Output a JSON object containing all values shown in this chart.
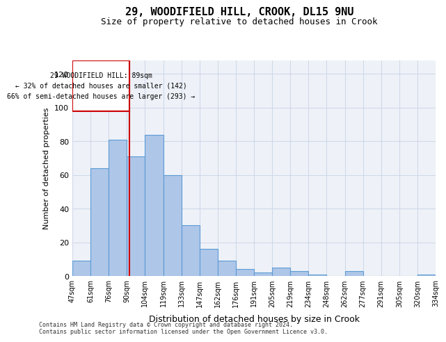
{
  "title1": "29, WOODIFIELD HILL, CROOK, DL15 9NU",
  "title2": "Size of property relative to detached houses in Crook",
  "xlabel": "Distribution of detached houses by size in Crook",
  "ylabel": "Number of detached properties",
  "bar_values": [
    9,
    64,
    81,
    71,
    84,
    60,
    30,
    16,
    9,
    4,
    2,
    5,
    3,
    1,
    0,
    3,
    0,
    0,
    0,
    1
  ],
  "bar_labels": [
    "47sqm",
    "61sqm",
    "76sqm",
    "90sqm",
    "104sqm",
    "119sqm",
    "133sqm",
    "147sqm",
    "162sqm",
    "176sqm",
    "191sqm",
    "205sqm",
    "219sqm",
    "234sqm",
    "248sqm",
    "262sqm",
    "277sqm",
    "291sqm",
    "305sqm",
    "320sqm"
  ],
  "extra_label": "334sqm",
  "bar_color": "#aec6e8",
  "bar_edge_color": "#5b9bd5",
  "vline_color": "#cc0000",
  "vline_x": 2.65,
  "annotation_text": "29 WOODIFIELD HILL: 89sqm\n← 32% of detached houses are smaller (142)\n66% of semi-detached houses are larger (293) →",
  "annotation_box_color": "#cc0000",
  "ylim": [
    0,
    128
  ],
  "yticks": [
    0,
    20,
    40,
    60,
    80,
    100,
    120
  ],
  "grid_color": "#d0d8e8",
  "bg_color": "#eef2f8",
  "footnote": "Contains HM Land Registry data © Crown copyright and database right 2024.\nContains public sector information licensed under the Open Government Licence v3.0."
}
